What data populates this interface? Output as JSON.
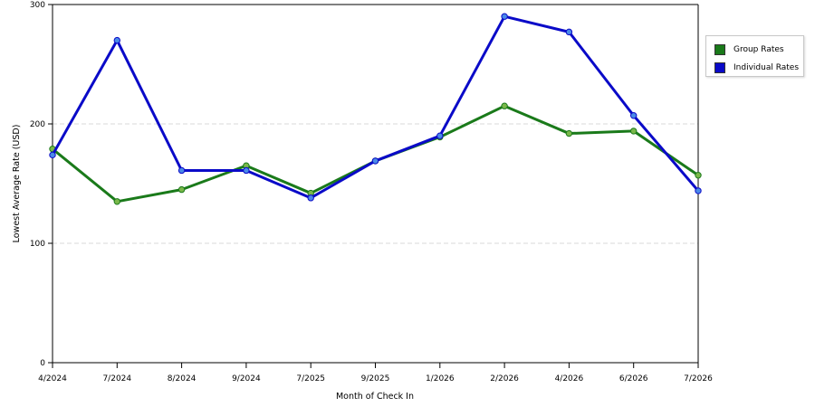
{
  "chart_data": {
    "type": "line",
    "title": "",
    "xlabel": "Month of Check In",
    "ylabel": "Lowest Average Rate (USD)",
    "categories": [
      "4/2024",
      "7/2024",
      "8/2024",
      "9/2024",
      "7/2025",
      "9/2025",
      "1/2026",
      "2/2026",
      "4/2026",
      "6/2026",
      "7/2026"
    ],
    "ylim": [
      0,
      300
    ],
    "yticks": [
      0,
      100,
      200,
      300
    ],
    "grid": true,
    "legend_position": "right",
    "series": [
      {
        "name": "Group Rates",
        "color": "#1a7a1a",
        "marker_color": "#7ab84a",
        "values": [
          179,
          135,
          145,
          165,
          142,
          169,
          189,
          215,
          192,
          194,
          157
        ]
      },
      {
        "name": "Individual Rates",
        "color": "#0a0ac8",
        "marker_color": "#4a8ae8",
        "values": [
          174,
          270,
          161,
          161,
          138,
          169,
          190,
          290,
          277,
          207,
          144
        ]
      }
    ]
  }
}
